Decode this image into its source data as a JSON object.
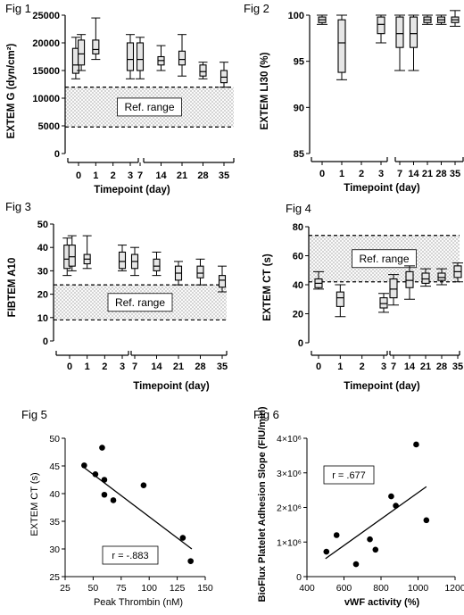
{
  "chart_data": [
    {
      "type": "box",
      "title": "Fig 1",
      "ylabel": "EXTEM G (dyn/cm²)",
      "xlabel": "Timepoint (day)",
      "ylim": [
        0,
        25000
      ],
      "yticks": [
        0,
        5000,
        10000,
        15000,
        20000,
        25000
      ],
      "x_segments": [
        [
          0,
          3
        ],
        [
          7,
          35
        ]
      ],
      "xticks": [
        "0",
        "1",
        "2",
        "3",
        "7",
        "14",
        "21",
        "28",
        "35"
      ],
      "reference_range": {
        "low": 4800,
        "high": 12000,
        "label": "Ref. range"
      },
      "boxes": [
        {
          "x": "0",
          "offset": -0.16,
          "min": 13500,
          "q1": 14500,
          "median": 16000,
          "q3": 19000,
          "max": 21000
        },
        {
          "x": "0",
          "offset": 0.16,
          "min": 15000,
          "q1": 16000,
          "median": 18000,
          "q3": 20500,
          "max": 21500
        },
        {
          "x": "1",
          "offset": 0,
          "min": 17000,
          "q1": 18000,
          "median": 18800,
          "q3": 20500,
          "max": 24500
        },
        {
          "x": "3",
          "offset": 0,
          "min": 13500,
          "q1": 15000,
          "median": 17000,
          "q3": 20000,
          "max": 21500
        },
        {
          "x": "7",
          "offset": 0,
          "min": 13500,
          "q1": 15000,
          "median": 17000,
          "q3": 20000,
          "max": 21000
        },
        {
          "x": "14",
          "offset": 0,
          "min": 15000,
          "q1": 16000,
          "median": 16800,
          "q3": 17500,
          "max": 19500
        },
        {
          "x": "21",
          "offset": 0,
          "min": 14000,
          "q1": 16000,
          "median": 17000,
          "q3": 18500,
          "max": 21500
        },
        {
          "x": "28",
          "offset": 0,
          "min": 13500,
          "q1": 14000,
          "median": 14800,
          "q3": 16000,
          "max": 16500
        },
        {
          "x": "35",
          "offset": 0,
          "min": 12000,
          "q1": 12800,
          "median": 13800,
          "q3": 15000,
          "max": 16500
        }
      ]
    },
    {
      "type": "box",
      "title": "Fig 2",
      "ylabel": "EXTEM LI30 (%)",
      "xlabel": "Timepoint (day)",
      "ylim": [
        85,
        100
      ],
      "yticks": [
        85,
        90,
        95,
        100
      ],
      "x_segments": [
        [
          0,
          3
        ],
        [
          7,
          35
        ]
      ],
      "xticks": [
        "0",
        "1",
        "2",
        "3",
        "7",
        "14",
        "21",
        "28",
        "35"
      ],
      "boxes": [
        {
          "x": "0",
          "offset": 0,
          "min": 99,
          "q1": 99.2,
          "median": 99.5,
          "q3": 99.8,
          "max": 100
        },
        {
          "x": "1",
          "offset": 0,
          "min": 93,
          "q1": 93.8,
          "median": 97,
          "q3": 99.5,
          "max": 100
        },
        {
          "x": "3",
          "offset": 0,
          "min": 97,
          "q1": 98,
          "median": 99,
          "q3": 99.8,
          "max": 100
        },
        {
          "x": "7",
          "offset": 0,
          "min": 94,
          "q1": 96.5,
          "median": 98,
          "q3": 99.8,
          "max": 100
        },
        {
          "x": "14",
          "offset": 0,
          "min": 94,
          "q1": 96.5,
          "median": 98,
          "q3": 99.8,
          "max": 100
        },
        {
          "x": "21",
          "offset": 0,
          "min": 99,
          "q1": 99.2,
          "median": 99.5,
          "q3": 99.8,
          "max": 100
        },
        {
          "x": "28",
          "offset": 0,
          "min": 99,
          "q1": 99.2,
          "median": 99.5,
          "q3": 99.8,
          "max": 100
        },
        {
          "x": "35",
          "offset": 0,
          "min": 98.8,
          "q1": 99.2,
          "median": 99.5,
          "q3": 99.8,
          "max": 100.5
        }
      ]
    },
    {
      "type": "box",
      "title": "Fig 3",
      "ylabel": "FIBTEM A10",
      "xlabel": "Timepoint (day)",
      "ylim": [
        0,
        50
      ],
      "yticks": [
        0,
        10,
        20,
        30,
        40,
        50
      ],
      "x_segments": [
        [
          0,
          3
        ],
        [
          7,
          35
        ]
      ],
      "xticks": [
        "0",
        "1",
        "2",
        "3",
        "7",
        "14",
        "21",
        "28",
        "35"
      ],
      "reference_range": {
        "low": 9,
        "high": 24,
        "label": "Ref. range"
      },
      "boxes": [
        {
          "x": "0",
          "offset": -0.14,
          "min": 28,
          "q1": 31,
          "median": 35,
          "q3": 41,
          "max": 44
        },
        {
          "x": "0",
          "offset": 0.14,
          "min": 30,
          "q1": 32,
          "median": 36,
          "q3": 41,
          "max": 45
        },
        {
          "x": "1",
          "offset": 0,
          "min": 31,
          "q1": 33,
          "median": 35,
          "q3": 37,
          "max": 45
        },
        {
          "x": "3",
          "offset": 0,
          "min": 30,
          "q1": 31,
          "median": 34,
          "q3": 38,
          "max": 41
        },
        {
          "x": "7",
          "offset": 0,
          "min": 28,
          "q1": 31,
          "median": 34,
          "q3": 37,
          "max": 40
        },
        {
          "x": "14",
          "offset": 0,
          "min": 28,
          "q1": 30,
          "median": 32,
          "q3": 35,
          "max": 38
        },
        {
          "x": "21",
          "offset": 0,
          "min": 24,
          "q1": 26,
          "median": 29,
          "q3": 32,
          "max": 34
        },
        {
          "x": "28",
          "offset": 0,
          "min": 24,
          "q1": 27,
          "median": 29,
          "q3": 32,
          "max": 35
        },
        {
          "x": "35",
          "offset": 0,
          "min": 21,
          "q1": 23,
          "median": 26,
          "q3": 28,
          "max": 32
        }
      ]
    },
    {
      "type": "box",
      "title": "Fig 4",
      "ylabel": "EXTEM CT (s)",
      "xlabel": "Timepoint (day)",
      "ylim": [
        0,
        80
      ],
      "yticks": [
        0,
        20,
        40,
        60,
        80
      ],
      "x_segments": [
        [
          0,
          3
        ],
        [
          7,
          35
        ]
      ],
      "xticks": [
        "0",
        "1",
        "2",
        "3",
        "7",
        "14",
        "21",
        "28",
        "35"
      ],
      "reference_range": {
        "low": 42,
        "high": 74,
        "label": "Ref. range"
      },
      "boxes": [
        {
          "x": "0",
          "offset": 0,
          "min": 37,
          "q1": 38,
          "median": 41,
          "q3": 44,
          "max": 49
        },
        {
          "x": "1",
          "offset": 0,
          "min": 18,
          "q1": 25,
          "median": 31,
          "q3": 35,
          "max": 40
        },
        {
          "x": "3",
          "offset": 0,
          "min": 21,
          "q1": 24,
          "median": 27,
          "q3": 31,
          "max": 34
        },
        {
          "x": "7",
          "offset": 0,
          "min": 26,
          "q1": 31,
          "median": 37,
          "q3": 44,
          "max": 47
        },
        {
          "x": "14",
          "offset": 0,
          "min": 30,
          "q1": 38,
          "median": 43,
          "q3": 49,
          "max": 53
        },
        {
          "x": "21",
          "offset": 0,
          "min": 39,
          "q1": 41,
          "median": 44,
          "q3": 48,
          "max": 51
        },
        {
          "x": "28",
          "offset": 0,
          "min": 40,
          "q1": 43,
          "median": 45,
          "q3": 48,
          "max": 51
        },
        {
          "x": "35",
          "offset": 0,
          "min": 42,
          "q1": 45,
          "median": 49,
          "q3": 53,
          "max": 55
        }
      ]
    },
    {
      "type": "scatter",
      "title": "Fig 5",
      "xlabel": "Peak Thrombin (nM)",
      "ylabel": "EXTEM CT (s)",
      "xlim": [
        25,
        150
      ],
      "ylim": [
        25,
        50
      ],
      "xticks": [
        25,
        50,
        75,
        100,
        125,
        150
      ],
      "yticks": [
        25,
        30,
        35,
        40,
        45,
        50
      ],
      "annotation": "r = -.883",
      "points": [
        {
          "x": 42,
          "y": 45.1
        },
        {
          "x": 52,
          "y": 43.5
        },
        {
          "x": 58,
          "y": 48.3
        },
        {
          "x": 60,
          "y": 42.5
        },
        {
          "x": 60,
          "y": 39.8
        },
        {
          "x": 68,
          "y": 38.8
        },
        {
          "x": 95,
          "y": 41.5
        },
        {
          "x": 130,
          "y": 32.0
        },
        {
          "x": 137,
          "y": 27.8
        }
      ],
      "fit_line": {
        "x1": 40,
        "y1": 45.0,
        "x2": 138,
        "y2": 30.0
      }
    },
    {
      "type": "scatter",
      "title": "Fig 6",
      "xlabel": "vWF activity (%)",
      "ylabel": "BioFlux Platelet Adhesion Slope (FIU/min)",
      "xlim": [
        400,
        1200
      ],
      "ylim": [
        0,
        4000000
      ],
      "xticks": [
        400,
        600,
        800,
        1000,
        1200
      ],
      "yticks": [
        0,
        1000000,
        2000000,
        3000000,
        4000000
      ],
      "ytick_labels": [
        "0",
        "1×10⁶",
        "2×10⁶",
        "3×10⁶",
        "4×10⁶"
      ],
      "annotation": "r = .677",
      "points": [
        {
          "x": 505,
          "y": 720000
        },
        {
          "x": 560,
          "y": 1200000
        },
        {
          "x": 665,
          "y": 360000
        },
        {
          "x": 740,
          "y": 1080000
        },
        {
          "x": 770,
          "y": 780000
        },
        {
          "x": 855,
          "y": 2320000
        },
        {
          "x": 880,
          "y": 2050000
        },
        {
          "x": 990,
          "y": 3820000
        },
        {
          "x": 1045,
          "y": 1630000
        }
      ],
      "fit_line": {
        "x1": 500,
        "y1": 520000,
        "x2": 1045,
        "y2": 2600000
      }
    }
  ]
}
